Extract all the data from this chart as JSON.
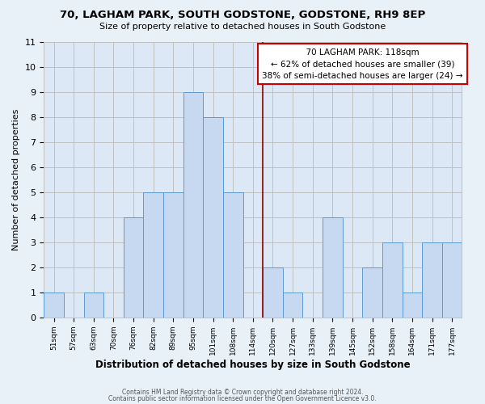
{
  "title": "70, LAGHAM PARK, SOUTH GODSTONE, GODSTONE, RH9 8EP",
  "subtitle": "Size of property relative to detached houses in South Godstone",
  "xlabel": "Distribution of detached houses by size in South Godstone",
  "ylabel": "Number of detached properties",
  "bin_labels": [
    "51sqm",
    "57sqm",
    "63sqm",
    "70sqm",
    "76sqm",
    "82sqm",
    "89sqm",
    "95sqm",
    "101sqm",
    "108sqm",
    "114sqm",
    "120sqm",
    "127sqm",
    "133sqm",
    "139sqm",
    "145sqm",
    "152sqm",
    "158sqm",
    "164sqm",
    "171sqm",
    "177sqm"
  ],
  "values": [
    1,
    0,
    1,
    0,
    4,
    5,
    5,
    9,
    8,
    5,
    0,
    2,
    1,
    0,
    4,
    0,
    2,
    3,
    1,
    3,
    3
  ],
  "bar_color": "#c6d9f0",
  "bar_edge_color": "#5b9bd5",
  "bar_edge_width": 0.7,
  "highlight_line_color": "#8b0000",
  "highlight_line_index": 10.5,
  "ylim": [
    0,
    11
  ],
  "yticks": [
    0,
    1,
    2,
    3,
    4,
    5,
    6,
    7,
    8,
    9,
    10,
    11
  ],
  "grid_color": "#c0c0c0",
  "background_color": "#e8f0f8",
  "plot_bg_color": "#dce8f5",
  "annotation_title": "70 LAGHAM PARK: 118sqm",
  "annotation_line1": "← 62% of detached houses are smaller (39)",
  "annotation_line2": "38% of semi-detached houses are larger (24) →",
  "annotation_box_edge": "#cc0000",
  "annotation_box_bg": "#ffffff",
  "footer1": "Contains HM Land Registry data © Crown copyright and database right 2024.",
  "footer2": "Contains public sector information licensed under the Open Government Licence v3.0."
}
